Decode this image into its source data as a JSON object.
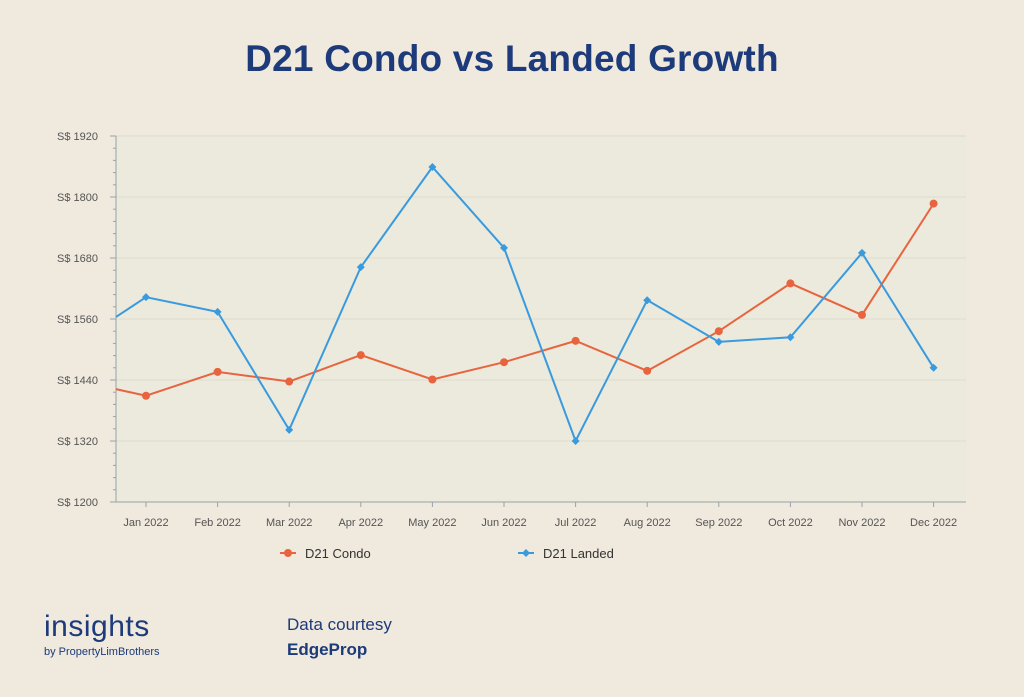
{
  "header": {
    "title": "D21 Condo vs Landed Growth"
  },
  "footer": {
    "brand": "insights",
    "brand_sub": "by PropertyLimBrothers",
    "credit_line1": "Data courtesy",
    "credit_line2": "EdgeProp"
  },
  "colors": {
    "background": "#efe9de",
    "plot_background": "#ebeadd",
    "title": "#1d3a7a",
    "condo": "#e8643e",
    "landed": "#3a9ade"
  },
  "chart_data": {
    "type": "line",
    "title": "D21 Condo vs Landed Growth",
    "categories": [
      "Jan 2022",
      "Feb 2022",
      "Mar 2022",
      "Apr 2022",
      "May 2022",
      "Jun 2022",
      "Jul 2022",
      "Aug 2022",
      "Sep 2022",
      "Oct 2022",
      "Nov 2022",
      "Dec 2022"
    ],
    "series": [
      {
        "name": "D21 Condo",
        "marker": "circle",
        "start_value": 1422,
        "values": [
          1409,
          1456,
          1437,
          1489,
          1441,
          1475,
          1517,
          1458,
          1536,
          1630,
          1568,
          1787
        ]
      },
      {
        "name": "D21 Landed",
        "marker": "diamond",
        "start_value": 1564,
        "values": [
          1603,
          1574,
          1342,
          1662,
          1859,
          1700,
          1320,
          1597,
          1515,
          1524,
          1690,
          1464
        ]
      }
    ],
    "ylim": [
      1200,
      1920
    ],
    "yticks": [
      1200,
      1320,
      1440,
      1560,
      1680,
      1800,
      1920
    ],
    "ytick_labels": [
      "S$ 1200",
      "S$ 1320",
      "S$ 1440",
      "S$ 1560",
      "S$ 1680",
      "S$ 1800",
      "S$ 1920"
    ],
    "xlabel": "",
    "ylabel": "",
    "grid": true,
    "legend_position": "bottom-center"
  }
}
